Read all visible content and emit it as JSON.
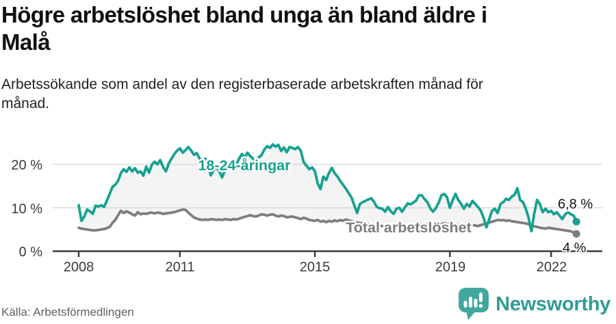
{
  "header": {
    "title_lines": [
      "Högre arbetslöshet bland unga än bland äldre i",
      "Malå"
    ],
    "subtitle_lines": [
      "Arbetssökande som andel av den registerbaserade arbetskraften månad för",
      "månad."
    ]
  },
  "footer": {
    "source": "Källa: Arbetsförmedlingen",
    "brand": "Newsworthy",
    "brand_color": "#2f9c94",
    "logo_bubble_color": "#43a69e"
  },
  "chart_data": {
    "type": "line",
    "title": "Högre arbetslöshet bland unga än bland äldre i Malå",
    "unit": "%",
    "frequency": "monthly",
    "x_start": "2008-01",
    "x_end": "2022-10",
    "ylim": [
      0,
      26
    ],
    "grid": "horizontal",
    "grid_color": "#d9d9d9",
    "axis_color": "#3b3b3b",
    "band_fill_between_series": "#f4f4f4",
    "y_ticks": [
      {
        "value": 0,
        "label": "0 %"
      },
      {
        "value": 10,
        "label": "10 %"
      },
      {
        "value": 20,
        "label": "20 %"
      }
    ],
    "x_ticks": [
      {
        "value": 2008,
        "label": "2008"
      },
      {
        "value": 2011,
        "label": "2011"
      },
      {
        "value": 2015,
        "label": "2015"
      },
      {
        "value": 2019,
        "label": "2019"
      },
      {
        "value": 2022,
        "label": "2022"
      }
    ],
    "series": [
      {
        "name": "18-24-åringar",
        "color": "#16a190",
        "end_label": "6,8 %",
        "end_value": 6.8,
        "values": [
          10.6,
          7.0,
          8.0,
          9.6,
          9.2,
          8.6,
          10.5,
          10.3,
          10.6,
          10.2,
          11.6,
          13.2,
          14.8,
          15.3,
          16.2,
          18.0,
          18.9,
          18.3,
          19.3,
          18.4,
          19.1,
          18.1,
          18.4,
          17.4,
          19.5,
          18.1,
          19.9,
          20.6,
          20.0,
          21.0,
          19.4,
          18.4,
          20.2,
          21.3,
          22.4,
          23.2,
          23.7,
          22.7,
          23.3,
          24.0,
          23.2,
          22.2,
          22.6,
          21.3,
          20.8,
          21.3,
          19.7,
          17.5,
          18.7,
          19.3,
          18.4,
          17.0,
          18.6,
          19.6,
          19.0,
          20.3,
          19.9,
          21.3,
          22.4,
          21.6,
          22.7,
          21.9,
          21.3,
          20.8,
          21.6,
          22.1,
          23.4,
          24.2,
          23.8,
          24.6,
          24.1,
          24.5,
          23.1,
          23.9,
          22.8,
          24.0,
          23.8,
          23.5,
          24.0,
          23.1,
          20.5,
          19.7,
          18.9,
          19.3,
          18.4,
          15.6,
          14.3,
          17.2,
          16.4,
          18.0,
          19.2,
          18.0,
          17.2,
          16.2,
          15.3,
          14.4,
          13.4,
          12.4,
          10.6,
          8.8,
          10.9,
          11.3,
          11.6,
          11.9,
          12.2,
          11.4,
          10.2,
          9.9,
          9.8,
          9.1,
          10.2,
          9.2,
          8.6,
          9.8,
          10.0,
          9.1,
          10.1,
          11.0,
          10.8,
          11.2,
          11.7,
          12.9,
          12.9,
          12.0,
          11.3,
          9.9,
          9.1,
          9.9,
          11.2,
          12.9,
          13.2,
          12.4,
          10.0,
          11.8,
          13.2,
          11.8,
          10.9,
          9.8,
          10.9,
          10.3,
          11.6,
          10.9,
          10.2,
          9.3,
          7.7,
          5.5,
          7.4,
          9.3,
          9.8,
          8.8,
          10.9,
          11.3,
          12.1,
          11.8,
          12.6,
          13.0,
          14.5,
          11.8,
          11.3,
          9.8,
          7.7,
          4.6,
          8.7,
          11.8,
          10.9,
          9.0,
          9.8,
          9.0,
          9.3,
          8.5,
          9.0,
          8.2,
          7.4,
          8.5,
          9.0,
          8.5,
          8.2,
          6.8
        ]
      },
      {
        "name": "Total arbetslöshet",
        "color": "#7d7d7d",
        "end_label": "4 %",
        "end_value": 4.0,
        "values": [
          5.4,
          5.2,
          5.1,
          5.0,
          4.9,
          4.8,
          4.8,
          4.9,
          5.0,
          5.1,
          5.3,
          5.6,
          6.5,
          7.2,
          8.3,
          9.3,
          8.8,
          9.2,
          8.9,
          8.5,
          8.2,
          9.0,
          8.5,
          8.7,
          8.6,
          8.8,
          8.9,
          8.7,
          8.9,
          8.8,
          8.6,
          8.7,
          8.8,
          8.9,
          9.0,
          9.2,
          9.4,
          9.6,
          9.5,
          8.9,
          8.3,
          7.8,
          7.5,
          7.3,
          7.2,
          7.3,
          7.2,
          7.4,
          7.3,
          7.2,
          7.3,
          7.2,
          7.4,
          7.3,
          7.2,
          7.4,
          7.3,
          7.5,
          7.7,
          7.9,
          8.1,
          8.3,
          8.1,
          8.0,
          8.2,
          8.5,
          8.4,
          8.2,
          8.4,
          8.5,
          8.2,
          8.0,
          8.2,
          8.1,
          7.8,
          7.9,
          8.0,
          7.8,
          7.6,
          7.4,
          7.7,
          7.5,
          7.2,
          7.1,
          7.0,
          7.2,
          6.8,
          7.0,
          6.7,
          7.0,
          6.8,
          7.1,
          6.9,
          7.2,
          7.0,
          7.3,
          7.1,
          6.9,
          6.7,
          6.6,
          6.5,
          6.4,
          6.3,
          6.2,
          6.1,
          6.0,
          5.9,
          5.8,
          5.8,
          5.7,
          5.6,
          5.6,
          5.5,
          5.5,
          5.4,
          5.5,
          5.6,
          5.7,
          5.8,
          5.9,
          6.0,
          6.1,
          6.2,
          6.1,
          6.2,
          6.3,
          6.4,
          6.5,
          6.4,
          6.3,
          6.4,
          6.3,
          6.2,
          6.1,
          5.9,
          6.0,
          6.1,
          5.9,
          5.8,
          5.9,
          6.0,
          5.9,
          5.8,
          6.0,
          6.2,
          6.4,
          6.6,
          6.8,
          7.0,
          7.2,
          7.1,
          7.2,
          7.0,
          7.1,
          6.9,
          6.8,
          6.7,
          6.6,
          6.5,
          6.4,
          6.2,
          5.9,
          5.7,
          5.6,
          5.4,
          5.3,
          5.2,
          5.4,
          5.3,
          5.2,
          5.1,
          5.0,
          4.9,
          4.8,
          4.7,
          4.6,
          4.3,
          4.0
        ]
      }
    ]
  }
}
